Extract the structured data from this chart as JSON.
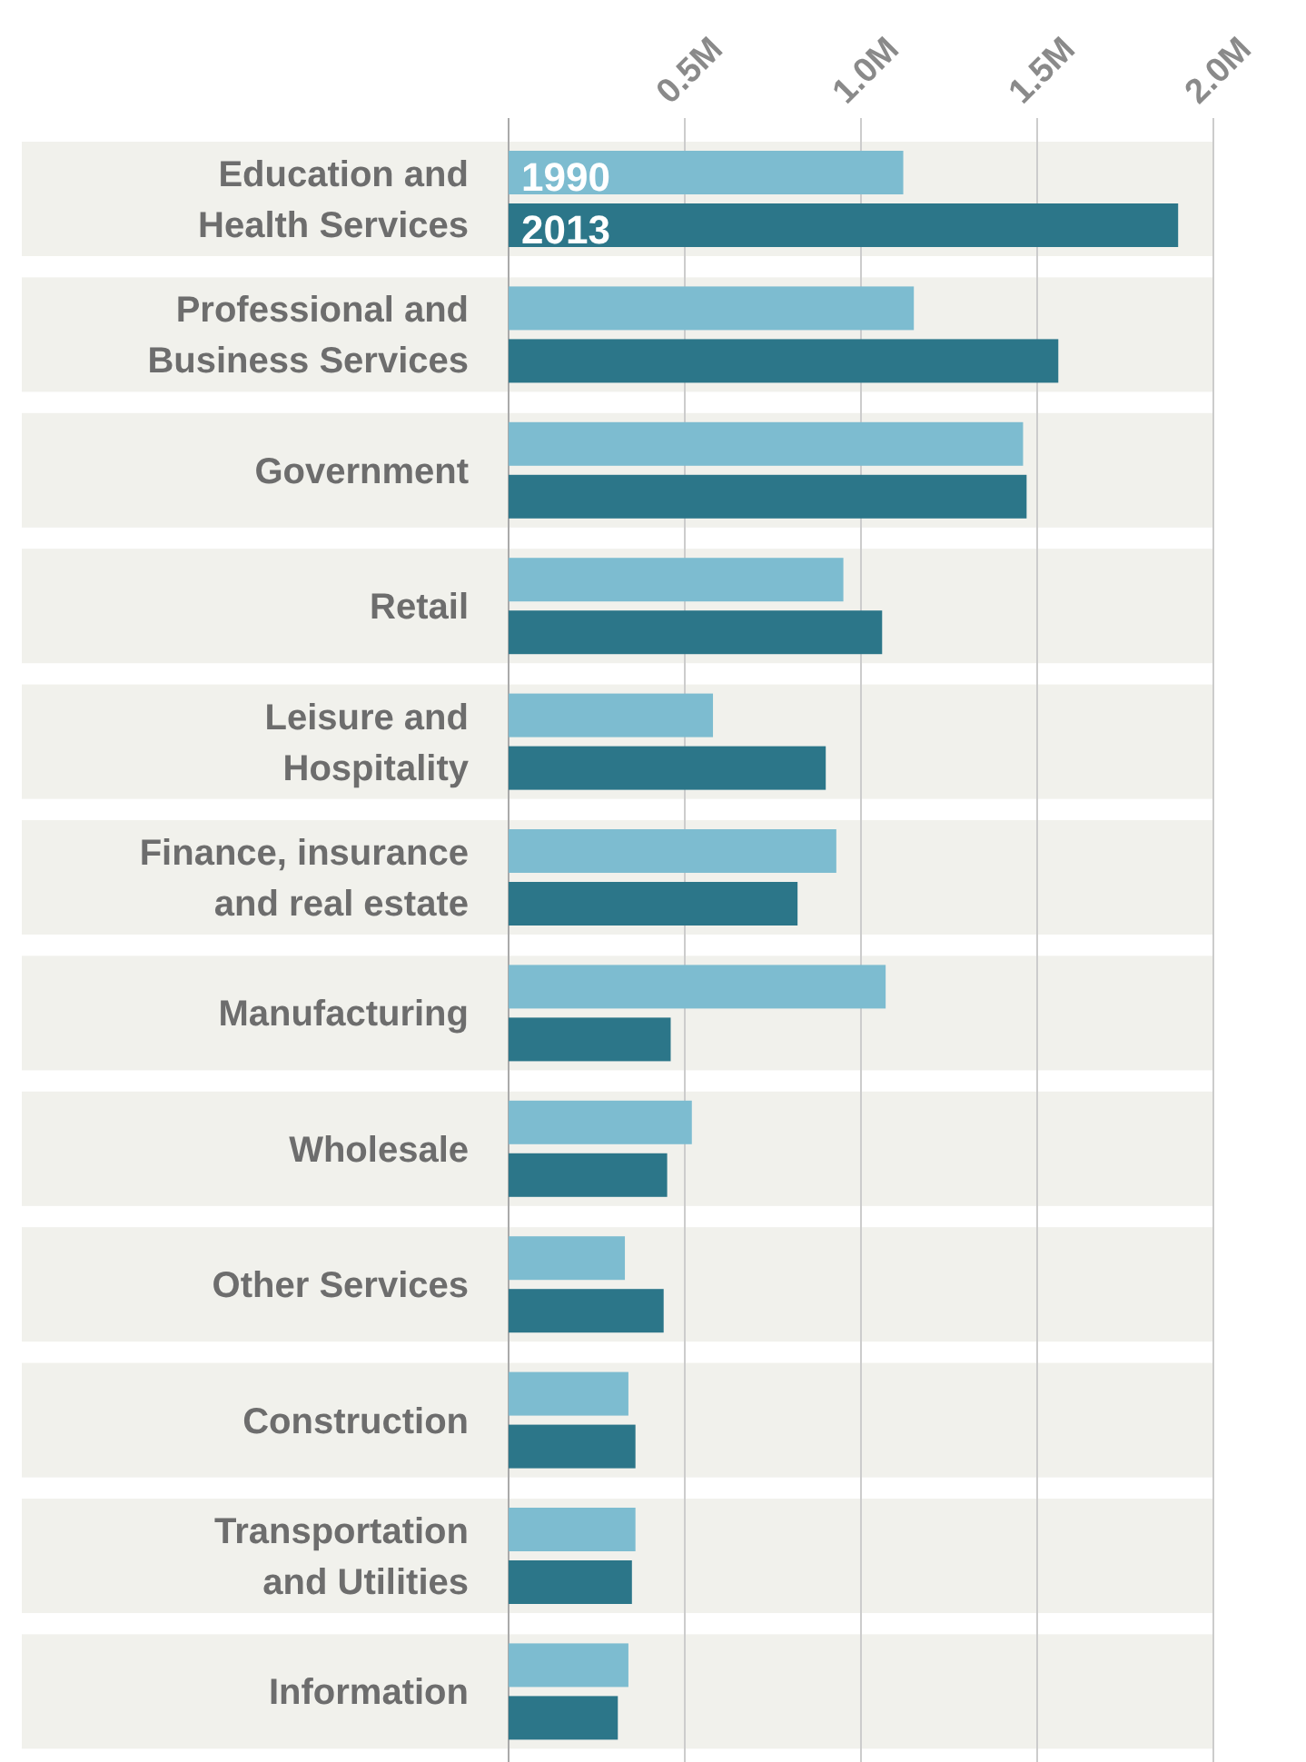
{
  "chart_data": {
    "type": "bar",
    "orientation": "horizontal",
    "categories": [
      "Education and\nHealth Services",
      "Professional and\nBusiness Services",
      "Government",
      "Retail",
      "Leisure and\nHospitality",
      "Finance, insurance\nand real estate",
      "Manufacturing",
      "Wholesale",
      "Other Services",
      "Construction",
      "Transportation\nand Utilities",
      "Information"
    ],
    "series": [
      {
        "name": "1990",
        "color": "#7dbcd0",
        "values": [
          1.12,
          1.15,
          1.46,
          0.95,
          0.58,
          0.93,
          1.07,
          0.52,
          0.33,
          0.34,
          0.36,
          0.34
        ]
      },
      {
        "name": "2013",
        "color": "#2c7689",
        "values": [
          1.9,
          1.56,
          1.47,
          1.06,
          0.9,
          0.82,
          0.46,
          0.45,
          0.44,
          0.36,
          0.35,
          0.31
        ]
      }
    ],
    "xlim": [
      0,
      2.0
    ],
    "xticks": [
      {
        "value": 0,
        "label": null
      },
      {
        "value": 0.5,
        "label": "0.5M"
      },
      {
        "value": 1.0,
        "label": "1.0M"
      },
      {
        "value": 1.5,
        "label": "1.5M"
      },
      {
        "value": 2.0,
        "label": "2.0M"
      }
    ],
    "bands": [
      {
        "axis": "y",
        "from": "Education and\nHealth Services",
        "to": "Education and\nHealth Services",
        "color": "#f1f1ec"
      },
      {
        "axis": "y",
        "from": "Professional and\nBusiness Services",
        "to": "Professional and\nBusiness Services",
        "color": "#f1f1ec"
      },
      {
        "axis": "y",
        "from": "Government",
        "to": "Government",
        "color": "#f1f1ec"
      },
      {
        "axis": "y",
        "from": "Retail",
        "to": "Retail",
        "color": "#f1f1ec"
      },
      {
        "axis": "y",
        "from": "Leisure and\nHospitality",
        "to": "Leisure and\nHospitality",
        "color": "#f1f1ec"
      },
      {
        "axis": "y",
        "from": "Finance, insurance\nand real estate",
        "to": "Finance, insurance\nand real estate",
        "color": "#f1f1ec"
      },
      {
        "axis": "y",
        "from": "Manufacturing",
        "to": "Manufacturing",
        "color": "#f1f1ec"
      },
      {
        "axis": "y",
        "from": "Wholesale",
        "to": "Wholesale",
        "color": "#f1f1ec"
      },
      {
        "axis": "y",
        "from": "Other Services",
        "to": "Other Services",
        "color": "#f1f1ec"
      },
      {
        "axis": "y",
        "from": "Construction",
        "to": "Construction",
        "color": "#f1f1ec"
      },
      {
        "axis": "y",
        "from": "Transportation\nand Utilities",
        "to": "Transportation\nand Utilities",
        "color": "#f1f1ec"
      },
      {
        "axis": "y",
        "from": "Information",
        "to": "Information",
        "color": "#f1f1ec"
      }
    ],
    "grid": "x",
    "legend": false
  }
}
